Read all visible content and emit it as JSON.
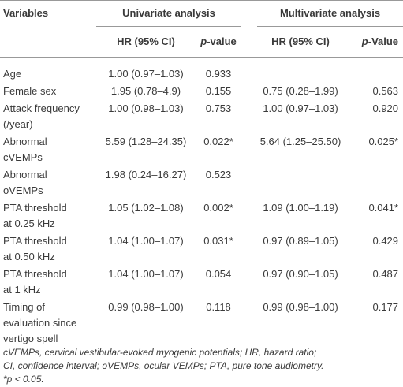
{
  "table": {
    "header": {
      "variables": "Variables",
      "univariate": "Univariate analysis",
      "multivariate": "Multivariate analysis"
    },
    "subheader": [
      {
        "text": "HR (95% CI)"
      },
      {
        "italic": "p",
        "text": "-value"
      },
      {
        "text": "HR (95% CI)"
      },
      {
        "italic": "p",
        "text": "-Value"
      }
    ],
    "rows": [
      {
        "variable": [
          "Age"
        ],
        "uni_hr": "1.00 (0.97–1.03)",
        "uni_p": "0.933",
        "multi_hr": null,
        "multi_p": null
      },
      {
        "variable": [
          "Female sex"
        ],
        "uni_hr": "1.95 (0.78–4.9)",
        "uni_p": "0.155",
        "multi_hr": "0.75 (0.28–1.99)",
        "multi_p": "0.563"
      },
      {
        "variable": [
          "Attack frequency",
          "(/year)"
        ],
        "uni_hr": "1.00 (0.98–1.03)",
        "uni_p": "0.753",
        "multi_hr": "1.00 (0.97–1.03)",
        "multi_p": "0.920"
      },
      {
        "variable": [
          "Abnormal",
          "cVEMPs"
        ],
        "uni_hr": "5.59 (1.28–24.35)",
        "uni_p": "0.022*",
        "multi_hr": "5.64 (1.25–25.50)",
        "multi_p": "0.025*"
      },
      {
        "variable": [
          "Abnormal",
          "oVEMPs"
        ],
        "uni_hr": "1.98 (0.24–16.27)",
        "uni_p": "0.523",
        "multi_hr": null,
        "multi_p": null
      },
      {
        "variable": [
          "PTA threshold",
          "at 0.25 kHz"
        ],
        "uni_hr": "1.05 (1.02–1.08)",
        "uni_p": "0.002*",
        "multi_hr": "1.09 (1.00–1.19)",
        "multi_p": "0.041*"
      },
      {
        "variable": [
          "PTA threshold",
          "at 0.50 kHz"
        ],
        "uni_hr": "1.04 (1.00–1.07)",
        "uni_p": "0.031*",
        "multi_hr": "0.97 (0.89–1.05)",
        "multi_p": "0.429"
      },
      {
        "variable": [
          "PTA threshold",
          "at 1 kHz"
        ],
        "uni_hr": "1.04 (1.00–1.07)",
        "uni_p": "0.054",
        "multi_hr": "0.97 (0.90–1.05)",
        "multi_p": "0.487"
      },
      {
        "variable": [
          "Timing of",
          "evaluation since",
          "vertigo spell"
        ],
        "uni_hr": "0.99 (0.98–1.00)",
        "uni_p": "0.118",
        "multi_hr": "0.99 (0.98–1.00)",
        "multi_p": "0.177"
      }
    ],
    "footnote": [
      "cVEMPs, cervical vestibular-evoked myogenic potentials; HR, hazard ratio;",
      "CI, confidence interval; oVEMPs, ocular VEMPs; PTA, pure tone audiometry.",
      "*p < 0.05."
    ]
  }
}
